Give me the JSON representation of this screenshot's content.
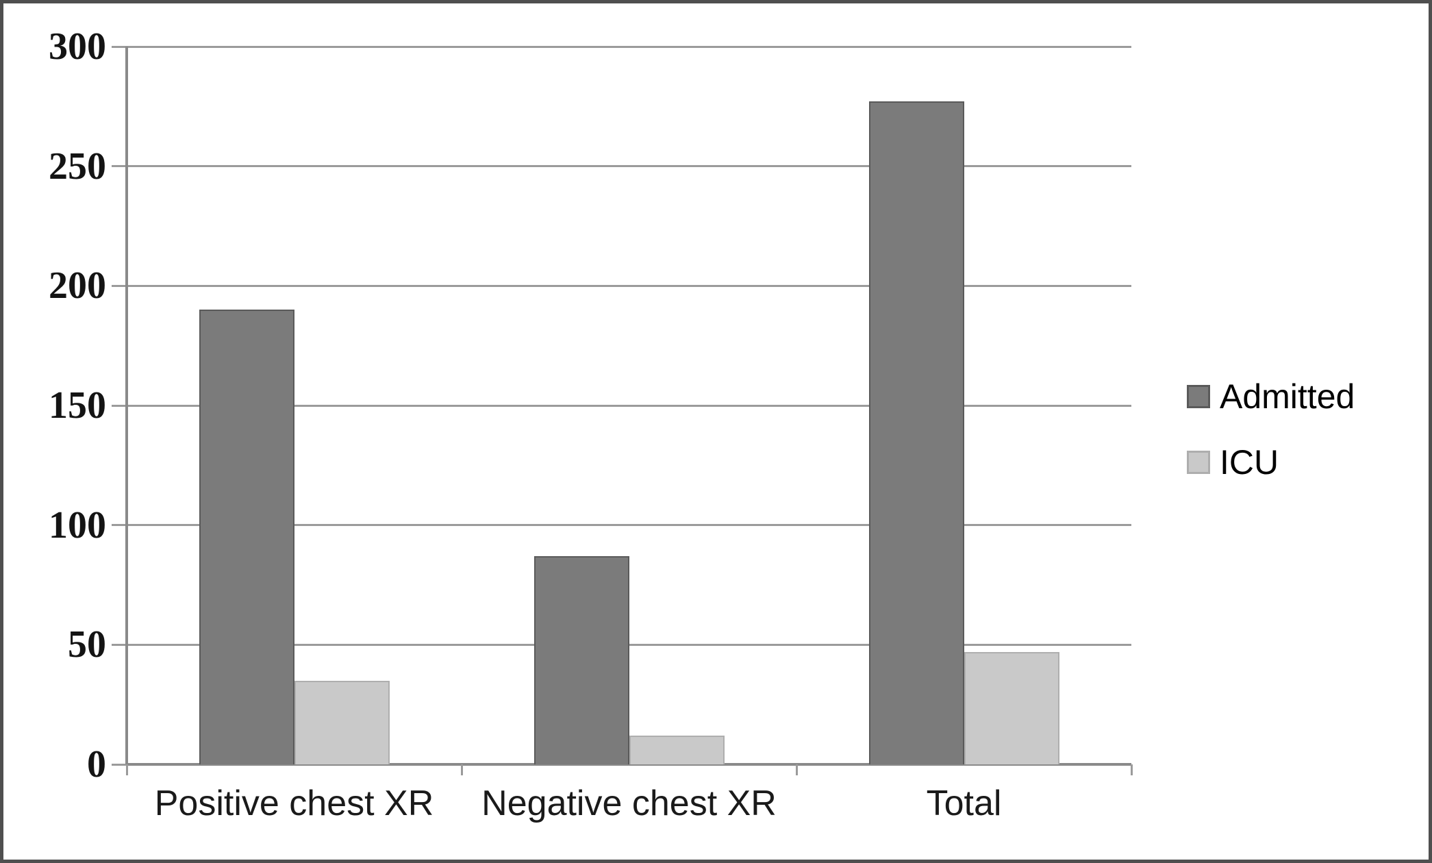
{
  "figure": {
    "background": "#ffffff",
    "border_color": "#4f4f4f"
  },
  "chart_data": {
    "type": "bar",
    "categories": [
      "Positive chest XR",
      "Negative chest XR",
      "Total"
    ],
    "series": [
      {
        "name": "Admitted",
        "color": "#7b7b7b",
        "border_color": "#5a5a5a",
        "values": [
          190,
          87,
          277
        ]
      },
      {
        "name": "ICU",
        "color": "#c9c9c9",
        "border_color": "#aeaeae",
        "values": [
          35,
          12,
          47
        ]
      }
    ],
    "title": "",
    "xlabel": "",
    "ylabel": "",
    "ylim": [
      0,
      300
    ],
    "ytick_interval": 50,
    "ytick_labels": [
      "0",
      "50",
      "100",
      "150",
      "200",
      "250",
      "300"
    ],
    "grid": true,
    "gridline_color": "#9b9b9b",
    "legend_position": "right"
  }
}
